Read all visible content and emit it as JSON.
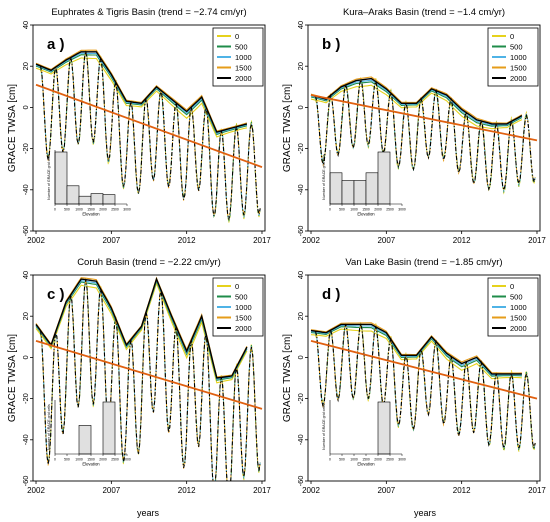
{
  "figure": {
    "ylabel": "GRACE TWSA [cm]",
    "xlabel": "years",
    "legend_labels": [
      "0",
      "500",
      "1000",
      "1500",
      "2000"
    ],
    "legend_colors": [
      "#e6d21c",
      "#1f8c4a",
      "#4fb3e6",
      "#e69c1a",
      "#000000"
    ],
    "trend_color": "#e06010"
  },
  "chart_data": [
    {
      "type": "line",
      "panel_label": "a )",
      "title": "Euphrates & Tigris Basin (trend = −2.74 cm/yr)",
      "ylim": [
        -60,
        40
      ],
      "yticks": [
        -60,
        -40,
        -20,
        0,
        20,
        40
      ],
      "xlim": [
        2001.8,
        2017.2
      ],
      "xticks": [
        2002,
        2007,
        2012,
        2017
      ],
      "trend": [
        [
          2002,
          11
        ],
        [
          2017,
          -29
        ]
      ],
      "envelope": {
        "x": [
          2002,
          2003,
          2004,
          2005,
          2006,
          2007,
          2008,
          2009,
          2010,
          2011,
          2012,
          2013,
          2014,
          2015,
          2016
        ],
        "y": [
          21,
          18,
          23,
          27,
          27,
          16,
          3,
          2,
          10,
          4,
          -2,
          5,
          -12,
          -10,
          -8
        ]
      },
      "series_amp": 18,
      "histogram": {
        "xlabel": "Elevation",
        "ylabel": "Number of GRACE grid cells",
        "xticks": [
          0,
          500,
          1000,
          1500,
          2000,
          2500,
          3000
        ],
        "bins": [
          [
            0,
            500,
            1.0
          ],
          [
            500,
            1000,
            0.35
          ],
          [
            1000,
            1500,
            0.15
          ],
          [
            1500,
            2000,
            0.2
          ],
          [
            2000,
            2500,
            0.18
          ]
        ]
      }
    },
    {
      "type": "line",
      "panel_label": "b )",
      "title": "Kura–Araks Basin (trend = −1.4 cm/yr)",
      "ylim": [
        -60,
        40
      ],
      "yticks": [
        -60,
        -40,
        -20,
        0,
        20,
        40
      ],
      "xlim": [
        2001.8,
        2017.2
      ],
      "xticks": [
        2002,
        2007,
        2012,
        2017
      ],
      "trend": [
        [
          2002,
          6
        ],
        [
          2017,
          -16
        ]
      ],
      "envelope": {
        "x": [
          2002,
          2003,
          2004,
          2005,
          2006,
          2007,
          2008,
          2009,
          2010,
          2011,
          2012,
          2013,
          2014,
          2015,
          2016
        ],
        "y": [
          6,
          4,
          10,
          13,
          14,
          9,
          2,
          2,
          9,
          6,
          -1,
          -6,
          -8,
          -8,
          -4
        ]
      },
      "series_amp": 12,
      "histogram": {
        "xlabel": "Elevation",
        "ylabel": "Number of GRACE grid cells",
        "xticks": [
          0,
          500,
          1000,
          1500,
          2000,
          2500,
          3000
        ],
        "bins": [
          [
            0,
            500,
            0.6
          ],
          [
            500,
            1000,
            0.45
          ],
          [
            1000,
            1500,
            0.45
          ],
          [
            1500,
            2000,
            0.6
          ],
          [
            2000,
            2500,
            1.0
          ]
        ]
      }
    },
    {
      "type": "line",
      "panel_label": "c )",
      "title": "Coruh Basin (trend = −2.22 cm/yr)",
      "ylim": [
        -60,
        40
      ],
      "yticks": [
        -60,
        -40,
        -20,
        0,
        20,
        40
      ],
      "xlim": [
        2001.8,
        2017.2
      ],
      "xticks": [
        2002,
        2007,
        2012,
        2017
      ],
      "trend": [
        [
          2002,
          8
        ],
        [
          2017,
          -25
        ]
      ],
      "envelope": {
        "x": [
          2002,
          2003,
          2004,
          2005,
          2006,
          2007,
          2008,
          2009,
          2010,
          2011,
          2012,
          2013,
          2014,
          2015,
          2016
        ],
        "y": [
          16,
          6,
          27,
          38,
          37,
          24,
          6,
          15,
          38,
          20,
          3,
          20,
          -10,
          -9,
          5
        ]
      },
      "series_amp": 26,
      "histogram": {
        "xlabel": "Elevation",
        "ylabel": "Number of GRACE grid cells",
        "xticks": [
          0,
          500,
          1000,
          1500,
          2000,
          2500,
          3000
        ],
        "bins": [
          [
            1000,
            1500,
            0.55
          ],
          [
            2000,
            2500,
            1.0
          ]
        ]
      }
    },
    {
      "type": "line",
      "panel_label": "d )",
      "title": "Van Lake Basin (trend = −1.85 cm/yr)",
      "ylim": [
        -60,
        40
      ],
      "yticks": [
        -60,
        -40,
        -20,
        0,
        20,
        40
      ],
      "xlim": [
        2001.8,
        2017.2
      ],
      "xticks": [
        2002,
        2007,
        2012,
        2017
      ],
      "trend": [
        [
          2002,
          8
        ],
        [
          2017,
          -20
        ]
      ],
      "envelope": {
        "x": [
          2002,
          2003,
          2004,
          2005,
          2006,
          2007,
          2008,
          2009,
          2010,
          2011,
          2012,
          2013,
          2014,
          2015,
          2016
        ],
        "y": [
          13,
          12,
          16,
          16,
          16,
          12,
          1,
          1,
          10,
          2,
          -3,
          0,
          -8,
          -8,
          -8
        ]
      },
      "series_amp": 14,
      "histogram": {
        "xlabel": "Elevation",
        "ylabel": "Number of GRACE grid cells",
        "xticks": [
          0,
          500,
          1000,
          1500,
          2000,
          2500,
          3000
        ],
        "bins": [
          [
            2000,
            2500,
            1.0
          ]
        ]
      }
    }
  ]
}
